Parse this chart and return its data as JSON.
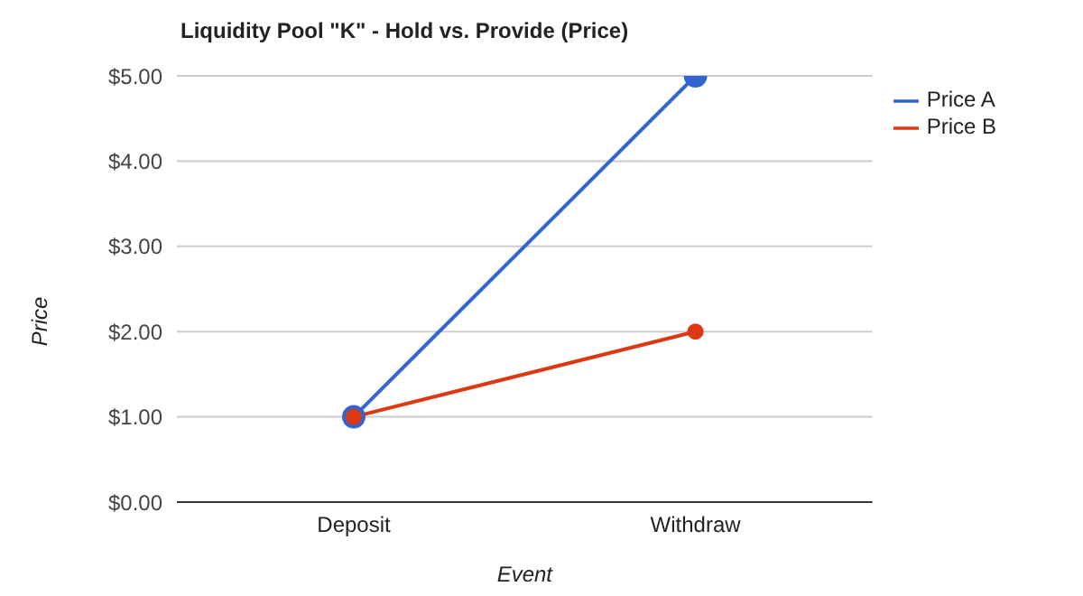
{
  "chart_data": {
    "type": "line",
    "title": "Liquidity Pool \"K\" - Hold vs. Provide (Price)",
    "xlabel": "Event",
    "ylabel": "Price",
    "categories": [
      "Deposit",
      "Withdraw"
    ],
    "series": [
      {
        "name": "Price A",
        "color": "#3366cc",
        "values": [
          1,
          5
        ]
      },
      {
        "name": "Price B",
        "color": "#dc3912",
        "values": [
          1,
          2
        ]
      }
    ],
    "ylim": [
      0,
      5
    ],
    "yticks": [
      {
        "value": 0,
        "label": "$0.00"
      },
      {
        "value": 1,
        "label": "$1.00"
      },
      {
        "value": 2,
        "label": "$2.00"
      },
      {
        "value": 3,
        "label": "$3.00"
      },
      {
        "value": 4,
        "label": "$4.00"
      },
      {
        "value": 5,
        "label": "$5.00"
      }
    ],
    "grid": "y",
    "legend": "top right",
    "marker": "circle",
    "line_style": "solid"
  }
}
